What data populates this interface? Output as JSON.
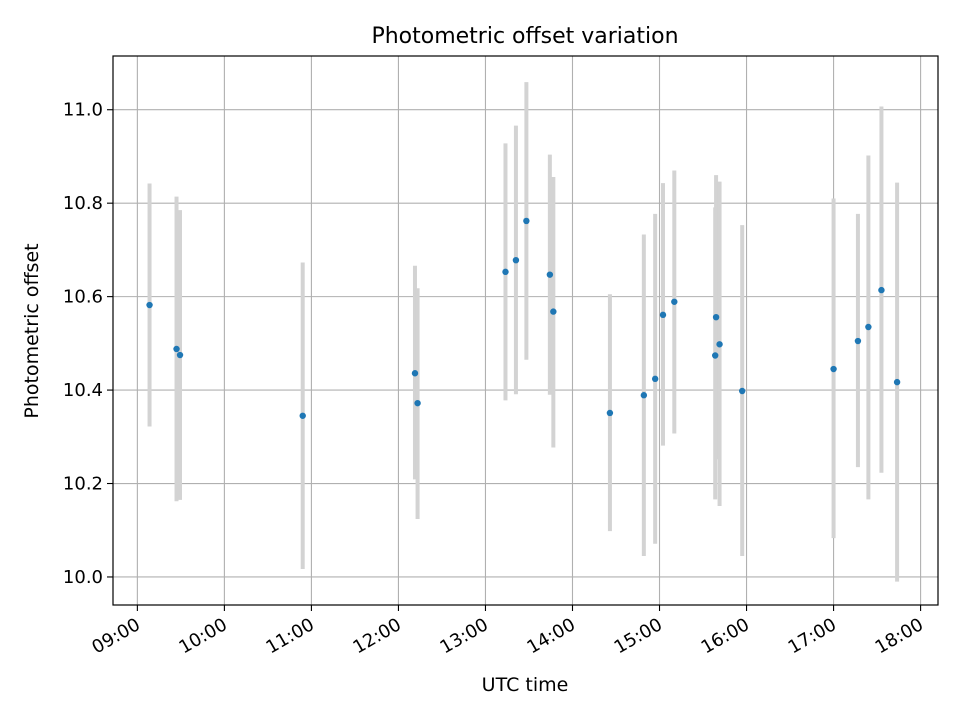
{
  "chart_data": {
    "type": "scatter",
    "title": "Photometric offset variation",
    "xlabel": "UTC time",
    "ylabel": "Photometric offset",
    "x_unit": "UTC hour",
    "xlim": [
      8.72,
      18.2
    ],
    "ylim": [
      9.94,
      11.115
    ],
    "grid": true,
    "x_ticks": [
      {
        "value": 9,
        "label": "09:00"
      },
      {
        "value": 10,
        "label": "10:00"
      },
      {
        "value": 11,
        "label": "11:00"
      },
      {
        "value": 12,
        "label": "12:00"
      },
      {
        "value": 13,
        "label": "13:00"
      },
      {
        "value": 14,
        "label": "14:00"
      },
      {
        "value": 15,
        "label": "15:00"
      },
      {
        "value": 16,
        "label": "16:00"
      },
      {
        "value": 17,
        "label": "17:00"
      },
      {
        "value": 18,
        "label": "18:00"
      }
    ],
    "y_ticks": [
      {
        "value": 10.0,
        "label": "10.0"
      },
      {
        "value": 10.2,
        "label": "10.2"
      },
      {
        "value": 10.4,
        "label": "10.4"
      },
      {
        "value": 10.6,
        "label": "10.6"
      },
      {
        "value": 10.8,
        "label": "10.8"
      },
      {
        "value": 11.0,
        "label": "11.0"
      }
    ],
    "marker_color": "#1f77b4",
    "errorbar_color": "#d3d3d3",
    "points": [
      {
        "time": "09:08",
        "x": 9.14,
        "y": 10.582,
        "ylow": 10.322,
        "yhigh": 10.842
      },
      {
        "time": "09:27",
        "x": 9.45,
        "y": 10.488,
        "ylow": 10.162,
        "yhigh": 10.814
      },
      {
        "time": "09:29",
        "x": 9.49,
        "y": 10.475,
        "ylow": 10.165,
        "yhigh": 10.785
      },
      {
        "time": "10:54",
        "x": 10.9,
        "y": 10.345,
        "ylow": 10.017,
        "yhigh": 10.673
      },
      {
        "time": "12:11",
        "x": 12.19,
        "y": 10.436,
        "ylow": 10.209,
        "yhigh": 10.666
      },
      {
        "time": "12:13",
        "x": 12.22,
        "y": 10.372,
        "ylow": 10.124,
        "yhigh": 10.618
      },
      {
        "time": "13:14",
        "x": 13.23,
        "y": 10.653,
        "ylow": 10.378,
        "yhigh": 10.928
      },
      {
        "time": "13:21",
        "x": 13.35,
        "y": 10.678,
        "ylow": 10.391,
        "yhigh": 10.966
      },
      {
        "time": "13:28",
        "x": 13.47,
        "y": 10.762,
        "ylow": 10.465,
        "yhigh": 11.059
      },
      {
        "time": "13:44",
        "x": 13.74,
        "y": 10.647,
        "ylow": 10.39,
        "yhigh": 10.904
      },
      {
        "time": "13:47",
        "x": 13.78,
        "y": 10.568,
        "ylow": 10.277,
        "yhigh": 10.856
      },
      {
        "time": "14:25",
        "x": 14.43,
        "y": 10.351,
        "ylow": 10.098,
        "yhigh": 10.605
      },
      {
        "time": "14:49",
        "x": 14.82,
        "y": 10.389,
        "ylow": 10.045,
        "yhigh": 10.733
      },
      {
        "time": "14:57",
        "x": 14.95,
        "y": 10.424,
        "ylow": 10.071,
        "yhigh": 10.777
      },
      {
        "time": "15:03",
        "x": 15.04,
        "y": 10.561,
        "ylow": 10.281,
        "yhigh": 10.843
      },
      {
        "time": "15:10",
        "x": 15.17,
        "y": 10.589,
        "ylow": 10.307,
        "yhigh": 10.87
      },
      {
        "time": "15:38",
        "x": 15.64,
        "y": 10.474,
        "ylow": 10.166,
        "yhigh": 10.791
      },
      {
        "time": "15:39",
        "x": 15.65,
        "y": 10.556,
        "ylow": 10.252,
        "yhigh": 10.86
      },
      {
        "time": "15:41",
        "x": 15.69,
        "y": 10.498,
        "ylow": 10.152,
        "yhigh": 10.846
      },
      {
        "time": "15:57",
        "x": 15.95,
        "y": 10.398,
        "ylow": 10.045,
        "yhigh": 10.753
      },
      {
        "time": "17:00",
        "x": 17.0,
        "y": 10.445,
        "ylow": 10.083,
        "yhigh": 10.81
      },
      {
        "time": "17:17",
        "x": 17.28,
        "y": 10.505,
        "ylow": 10.235,
        "yhigh": 10.777
      },
      {
        "time": "17:24",
        "x": 17.4,
        "y": 10.535,
        "ylow": 10.166,
        "yhigh": 10.902
      },
      {
        "time": "17:33",
        "x": 17.55,
        "y": 10.614,
        "ylow": 10.223,
        "yhigh": 11.007
      },
      {
        "time": "17:44",
        "x": 17.73,
        "y": 10.417,
        "ylow": 9.99,
        "yhigh": 10.844
      }
    ]
  }
}
